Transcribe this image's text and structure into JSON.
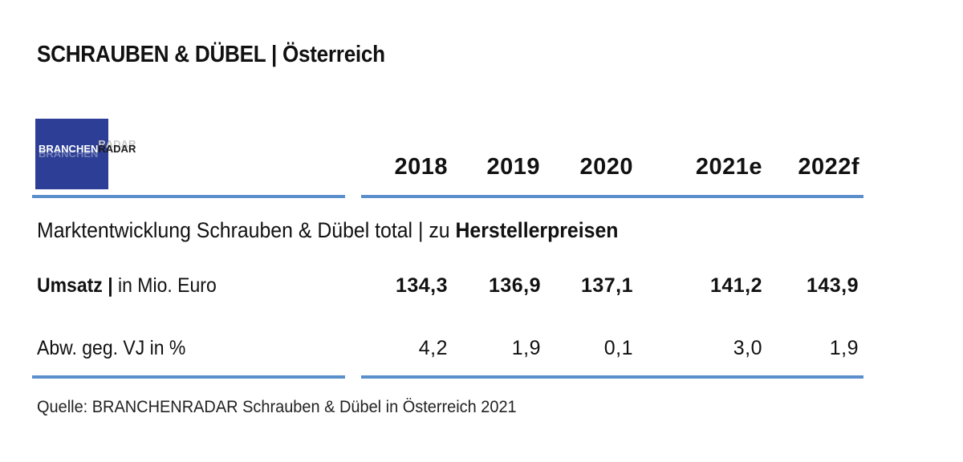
{
  "title": {
    "main": "SCHRAUBEN & DÜBEL",
    "separator": "|",
    "region": "Österreich"
  },
  "logo": {
    "word1": "BRANCHEN",
    "word2": "RADAR",
    "color": "#2c3e95"
  },
  "colors": {
    "rule": "#5b8fcc"
  },
  "chart_data": {
    "type": "table",
    "title": "SCHRAUBEN & DÜBEL | Österreich",
    "subtitle_regular": "Marktentwicklung Schrauben & Dübel total | zu ",
    "subtitle_bold": "Herstellerpreisen",
    "columns": [
      "2018",
      "2019",
      "2020",
      "2021e",
      "2022f"
    ],
    "rows": [
      {
        "label_bold": "Umsatz |",
        "label_regular": " in Mio. Euro",
        "values": [
          "134,3",
          "136,9",
          "137,1",
          "141,2",
          "143,9"
        ],
        "bold": true
      },
      {
        "label_bold": "",
        "label_regular": "Abw. geg. VJ in %",
        "values": [
          "4,2",
          "1,9",
          "0,1",
          "3,0",
          "1,9"
        ],
        "bold": false
      }
    ],
    "source": "Quelle: BRANCHENRADAR Schrauben & Dübel in Österreich 2021"
  }
}
